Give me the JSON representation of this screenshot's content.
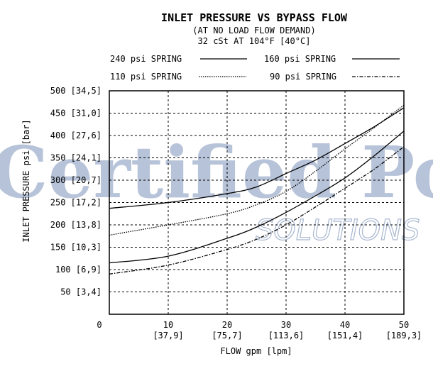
{
  "chart_data": {
    "type": "line",
    "title": "INLET PRESSURE VS BYPASS FLOW",
    "subtitle": "(AT NO LOAD FLOW DEMAND)",
    "conditions": "32 cSt AT 104°F [40°C]",
    "xlabel": "FLOW gpm [lpm]",
    "ylabel": "INLET PRESSURE psi [bar]",
    "xlim": [
      0,
      50
    ],
    "ylim": [
      0,
      500
    ],
    "grid": true,
    "x_ticks": [
      {
        "value": 0,
        "label": "0",
        "sub": ""
      },
      {
        "value": 10,
        "label": "10",
        "sub": "[37,9]"
      },
      {
        "value": 20,
        "label": "20",
        "sub": "[75,7]"
      },
      {
        "value": 30,
        "label": "30",
        "sub": "[113,6]"
      },
      {
        "value": 40,
        "label": "40",
        "sub": "[151,4]"
      },
      {
        "value": 50,
        "label": "50",
        "sub": "[189,3]"
      }
    ],
    "y_ticks": [
      {
        "value": 50,
        "label": "50 [3,4]"
      },
      {
        "value": 100,
        "label": "100 [6,9]"
      },
      {
        "value": 150,
        "label": "150 [10,3]"
      },
      {
        "value": 200,
        "label": "200 [13,8]"
      },
      {
        "value": 250,
        "label": "250 [17,2]"
      },
      {
        "value": 300,
        "label": "300 [20,7]"
      },
      {
        "value": 350,
        "label": "350 [24,1]"
      },
      {
        "value": 400,
        "label": "400 [27,6]"
      },
      {
        "value": 450,
        "label": "450 [31,0]"
      },
      {
        "value": 500,
        "label": "500 [34,5]"
      }
    ],
    "legend_position": "top",
    "series": [
      {
        "name": "240 psi SPRING",
        "style": "solid",
        "x": [
          0,
          10,
          20,
          25,
          30,
          35,
          40,
          45,
          50
        ],
        "y": [
          237,
          250,
          270,
          285,
          315,
          345,
          382,
          420,
          462
        ]
      },
      {
        "name": "160 psi SPRING",
        "style": "solid",
        "x": [
          0,
          10,
          20,
          25,
          30,
          35,
          40,
          45,
          50
        ],
        "y": [
          115,
          130,
          170,
          195,
          228,
          265,
          305,
          355,
          410
        ]
      },
      {
        "name": "110 psi SPRING",
        "style": "dotted",
        "x": [
          0,
          10,
          20,
          25,
          30,
          35,
          40,
          45,
          50
        ],
        "y": [
          177,
          200,
          225,
          245,
          275,
          320,
          370,
          418,
          468
        ]
      },
      {
        "name": "90 psi SPRING",
        "style": "dashed",
        "x": [
          0,
          10,
          20,
          25,
          30,
          35,
          40,
          45,
          50
        ],
        "y": [
          90,
          110,
          145,
          168,
          200,
          240,
          282,
          325,
          375
        ]
      }
    ]
  },
  "watermark": {
    "line1": "Certified Power",
    "line2": "SOLUTIONS",
    "color": "#9fb0cc"
  }
}
